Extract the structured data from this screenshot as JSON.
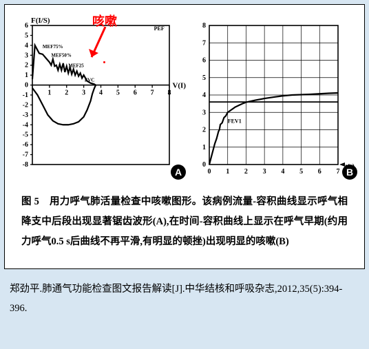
{
  "annotation": {
    "label": "咳嗽",
    "color": "#ff0000",
    "arrow_color": "#ff0000"
  },
  "chartA": {
    "type": "line",
    "y_label": "F(I/S)",
    "x_label": "V(I)",
    "x_ticks": [
      0,
      1,
      2,
      3,
      4,
      5,
      6,
      7,
      8
    ],
    "y_ticks": [
      -8,
      -7,
      -6,
      -5,
      -4,
      -3,
      -2,
      -1,
      0,
      1,
      2,
      3,
      4,
      5,
      6
    ],
    "xlim": [
      0,
      8
    ],
    "ylim": [
      -8,
      6
    ],
    "inner_labels": [
      "MEF75%",
      "MEF50%",
      "MEF25",
      "FVC",
      "PEF"
    ],
    "axis_color": "#000000",
    "grid_color": "#000000",
    "line_color": "#000000",
    "line_width": 2.2,
    "background": "#ffffff",
    "font_size_axis": 10,
    "exp_curve": [
      [
        0.0,
        0.6
      ],
      [
        0.15,
        4.0
      ],
      [
        0.4,
        3.2
      ],
      [
        0.6,
        3.1
      ],
      [
        0.8,
        2.7
      ],
      [
        1.0,
        2.3
      ],
      [
        1.1,
        2.0
      ],
      [
        1.2,
        2.6
      ],
      [
        1.3,
        1.9
      ],
      [
        1.4,
        2.0
      ],
      [
        1.5,
        1.5
      ],
      [
        1.6,
        2.1
      ],
      [
        1.7,
        1.5
      ],
      [
        1.8,
        2.2
      ],
      [
        1.9,
        1.3
      ],
      [
        2.0,
        1.9
      ],
      [
        2.1,
        1.2
      ],
      [
        2.2,
        1.8
      ],
      [
        2.3,
        1.1
      ],
      [
        2.4,
        1.6
      ],
      [
        2.5,
        1.0
      ],
      [
        2.6,
        1.4
      ],
      [
        2.7,
        0.9
      ],
      [
        2.8,
        1.2
      ],
      [
        2.9,
        0.7
      ],
      [
        3.0,
        1.0
      ],
      [
        3.2,
        0.4
      ],
      [
        3.4,
        0.2
      ],
      [
        3.6,
        0.1
      ],
      [
        3.7,
        0.0
      ]
    ],
    "insp_curve": [
      [
        0.0,
        -0.3
      ],
      [
        0.3,
        -1.0
      ],
      [
        0.6,
        -2.0
      ],
      [
        0.9,
        -3.0
      ],
      [
        1.2,
        -3.6
      ],
      [
        1.5,
        -3.9
      ],
      [
        1.8,
        -4.0
      ],
      [
        2.1,
        -4.0
      ],
      [
        2.4,
        -3.9
      ],
      [
        2.7,
        -3.7
      ],
      [
        3.0,
        -3.2
      ],
      [
        3.2,
        -2.5
      ],
      [
        3.4,
        -1.6
      ],
      [
        3.5,
        -0.9
      ],
      [
        3.6,
        -0.4
      ],
      [
        3.7,
        0.0
      ]
    ],
    "badge": "A"
  },
  "chartB": {
    "type": "line",
    "y_label": "",
    "x_label": "t(s)",
    "x_ticks": [
      0,
      1,
      2,
      3,
      4,
      5,
      6,
      7
    ],
    "y_ticks": [
      0,
      1,
      2,
      3,
      4,
      5,
      6,
      7,
      8
    ],
    "xlim": [
      0,
      7
    ],
    "ylim": [
      0,
      8
    ],
    "inner_labels": [
      "FEV1"
    ],
    "axis_color": "#000000",
    "grid_color": "#000000",
    "line_color": "#000000",
    "line_width": 2.2,
    "background": "#ffffff",
    "font_size_axis": 10,
    "curve": [
      [
        0.0,
        0.0
      ],
      [
        0.15,
        0.6
      ],
      [
        0.3,
        1.2
      ],
      [
        0.4,
        1.5
      ],
      [
        0.5,
        1.9
      ],
      [
        0.55,
        2.0
      ],
      [
        0.6,
        2.3
      ],
      [
        0.7,
        2.4
      ],
      [
        0.8,
        2.7
      ],
      [
        0.9,
        2.8
      ],
      [
        1.0,
        3.0
      ],
      [
        1.2,
        3.15
      ],
      [
        1.4,
        3.3
      ],
      [
        1.6,
        3.4
      ],
      [
        1.8,
        3.5
      ],
      [
        2.0,
        3.58
      ],
      [
        2.5,
        3.7
      ],
      [
        3.0,
        3.8
      ],
      [
        3.5,
        3.88
      ],
      [
        4.0,
        3.95
      ],
      [
        4.5,
        4.0
      ],
      [
        5.0,
        4.02
      ],
      [
        5.5,
        4.04
      ],
      [
        6.0,
        4.07
      ],
      [
        6.5,
        4.1
      ],
      [
        7.0,
        4.12
      ]
    ],
    "hline_y": 3.6,
    "badge": "B"
  },
  "caption": {
    "fig_num": "图 5",
    "title": "用力呼气肺活量检查中咳嗽图形。",
    "body": "该病例流量-容积曲线显示呼气相降支中后段出现显著锯齿波形(A),在时间-容积曲线上显示在呼气早期(约用力呼气0.5 s后曲线不再平滑,有明显的顿挫)出现明显的咳嗽(B)"
  },
  "citation": "郑劲平.肺通气功能检查图文报告解读[J].中华结核和呼吸杂志,2012,35(5):394-396."
}
